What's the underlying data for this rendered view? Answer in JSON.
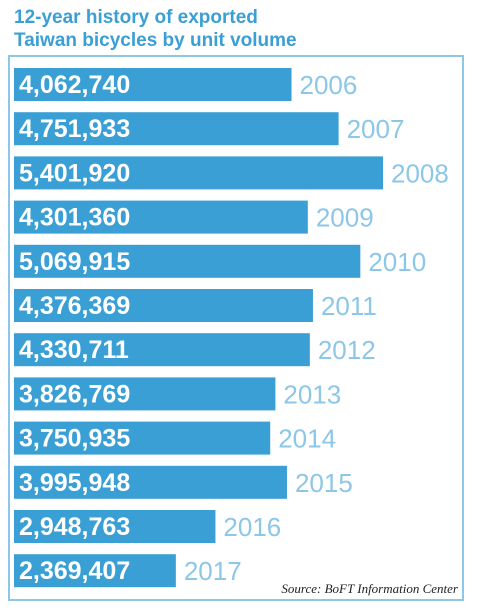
{
  "title_line1": "12-year history of exported",
  "title_line2": "Taiwan bicycles by unit volume",
  "source": "Source: BoFT Information Center",
  "colors": {
    "bar": "#3a9fd4",
    "year_label": "#8cc7e7",
    "value_label": "#ffffff",
    "title": "#3a9fd4"
  },
  "chart_data": {
    "type": "bar",
    "orientation": "horizontal",
    "categories": [
      "2006",
      "2007",
      "2008",
      "2009",
      "2010",
      "2011",
      "2012",
      "2013",
      "2014",
      "2015",
      "2016",
      "2017"
    ],
    "values": [
      4062740,
      4751933,
      5401920,
      4301360,
      5069915,
      4376369,
      4330711,
      3826769,
      3750935,
      3995948,
      2948763,
      2369407
    ],
    "value_labels": [
      "4,062,740",
      "4,751,933",
      "5,401,920",
      "4,301,360",
      "5,069,915",
      "4,376,369",
      "4,330,711",
      "3,826,769",
      "3,750,935",
      "3,995,948",
      "2,948,763",
      "2,369,407"
    ],
    "title": "12-year history of exported Taiwan bicycles by unit volume",
    "xlabel": "",
    "ylabel": "",
    "grid": false,
    "legend": "none"
  }
}
